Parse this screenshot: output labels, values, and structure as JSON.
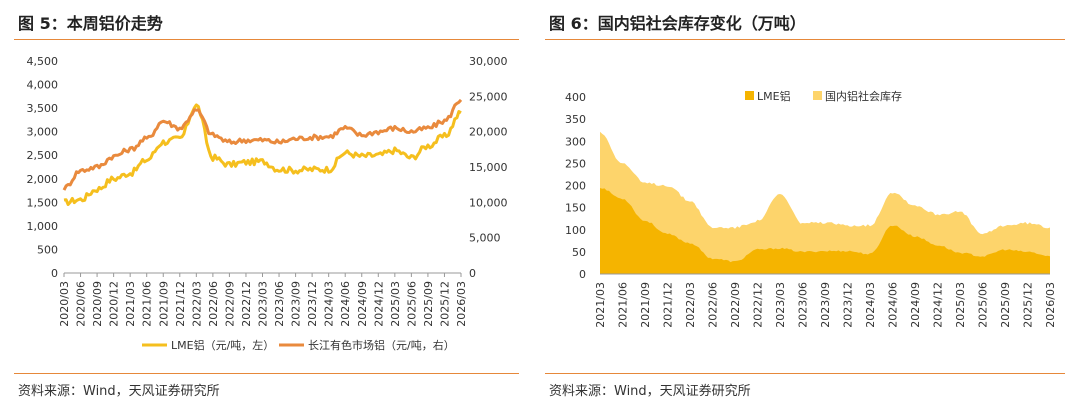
{
  "left_panel": {
    "title": "图 5：本周铝价走势",
    "source": "资料来源：Wind，天风证券研究所"
  },
  "right_panel": {
    "title": "图 6：国内铝社会库存变化（万吨）",
    "source": "资料来源：Wind，天风证券研究所"
  },
  "chart_data": [
    {
      "type": "line",
      "title": "图 5：本周铝价走势",
      "categories": [
        "2020/03",
        "2020/06",
        "2020/09",
        "2020/12",
        "2021/03",
        "2021/06",
        "2021/09",
        "2021/12",
        "2022/03",
        "2022/06",
        "2022/09",
        "2022/12",
        "2023/03",
        "2023/06",
        "2023/09",
        "2023/12",
        "2024/03",
        "2024/06",
        "2024/09",
        "2024/12",
        "2025/03",
        "2025/06",
        "2025/09",
        "2025/12",
        "2026/03"
      ],
      "y_left": {
        "range": [
          0,
          4500
        ],
        "ticks": [
          "0",
          "500",
          "1,000",
          "1,500",
          "2,000",
          "2,500",
          "3,000",
          "3,500",
          "4,000",
          "4,500"
        ]
      },
      "y_right": {
        "range": [
          0,
          30000
        ],
        "ticks": [
          "0",
          "5,000",
          "10,000",
          "15,000",
          "20,000",
          "25,000",
          "30,000"
        ]
      },
      "series": [
        {
          "name": "LME铝（元/吨，左）",
          "axis": "left",
          "color": "#f5bf1e",
          "values": [
            1500,
            1560,
            1780,
            2000,
            2120,
            2400,
            2780,
            2850,
            3550,
            2450,
            2300,
            2350,
            2370,
            2200,
            2180,
            2200,
            2200,
            2550,
            2480,
            2500,
            2600,
            2450,
            2700,
            2900,
            3400
          ]
        },
        {
          "name": "长江有色市场铝（元/吨，右）",
          "axis": "right",
          "color": "#e98a3d",
          "values": [
            12000,
            14500,
            15000,
            16500,
            17500,
            19000,
            21500,
            20500,
            23000,
            19500,
            18500,
            18800,
            18800,
            18500,
            19000,
            19200,
            19300,
            20500,
            19500,
            20000,
            20500,
            20000,
            20500,
            21500,
            24500
          ]
        }
      ],
      "legend": "bottom"
    },
    {
      "type": "area",
      "title": "图 6：国内铝社会库存变化（万吨）",
      "categories": [
        "2021/03",
        "2021/06",
        "2021/09",
        "2021/12",
        "2022/03",
        "2022/06",
        "2022/09",
        "2022/12",
        "2023/03",
        "2023/06",
        "2023/09",
        "2023/12",
        "2024/03",
        "2024/06",
        "2024/09",
        "2024/12",
        "2025/03",
        "2025/06",
        "2025/09",
        "2025/12",
        "2026/03"
      ],
      "y": {
        "range": [
          0,
          400
        ],
        "ticks": [
          "0",
          "50",
          "100",
          "150",
          "200",
          "250",
          "300",
          "350",
          "400"
        ]
      },
      "series": [
        {
          "name": "LME铝",
          "color": "#f5b400",
          "values": [
            195,
            170,
            120,
            90,
            70,
            35,
            28,
            55,
            58,
            50,
            52,
            52,
            45,
            110,
            85,
            65,
            48,
            40,
            55,
            50,
            40
          ]
        },
        {
          "name": "国内铝社会库存",
          "color": "#fdd46b",
          "values": [
            320,
            250,
            205,
            200,
            165,
            105,
            105,
            120,
            180,
            115,
            115,
            110,
            110,
            185,
            155,
            135,
            140,
            90,
            110,
            115,
            105
          ]
        }
      ],
      "legend": "top"
    }
  ]
}
